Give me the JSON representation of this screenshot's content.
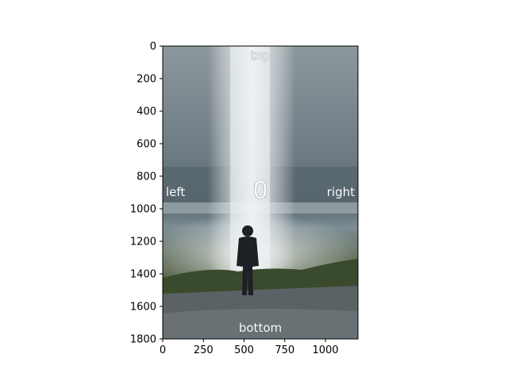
{
  "chart_data": {
    "type": "image",
    "title": "",
    "xlabel": "",
    "ylabel": "",
    "xlim": [
      0,
      1200
    ],
    "ylim": [
      1800,
      0
    ],
    "y_inverted": true,
    "grid": false,
    "x_ticks": [
      0,
      250,
      500,
      750,
      1000
    ],
    "y_ticks": [
      0,
      200,
      400,
      600,
      800,
      1000,
      1200,
      1400,
      1600,
      1800
    ],
    "image_description_keywords": [
      "waterfall",
      "person silhouette",
      "cloudy sky",
      "grass",
      "wet ground"
    ],
    "overlay_text": {
      "top": "top",
      "left": "left",
      "right": "right",
      "bottom": "bottom",
      "center": "0"
    },
    "colors": {
      "sky": "#7e8c93",
      "mist": "#c9d1d4",
      "grass": "#3c4a2e",
      "ground": "#5d6468",
      "person": "#1d2024"
    }
  }
}
